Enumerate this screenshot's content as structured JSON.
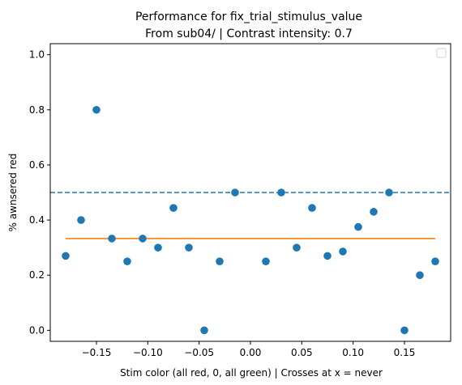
{
  "chart_data": {
    "type": "scatter",
    "title": "Performance for fix_trial_stimulus_value",
    "subtitle": "From sub04/ | Contrast intensity: 0.7",
    "xlabel": "Stim color (all red, 0, all green) | Crosses at x = never",
    "ylabel": "% awnsered red",
    "xlim": [
      -0.195,
      0.195
    ],
    "ylim": [
      -0.04,
      1.04
    ],
    "xticks": [
      -0.15,
      -0.1,
      -0.05,
      0.0,
      0.05,
      0.1,
      0.15
    ],
    "xtick_labels": [
      "−0.15",
      "−0.10",
      "−0.05",
      "0.00",
      "0.05",
      "0.10",
      "0.15"
    ],
    "yticks": [
      0.0,
      0.2,
      0.4,
      0.6,
      0.8,
      1.0
    ],
    "ytick_labels": [
      "0.0",
      "0.2",
      "0.4",
      "0.6",
      "0.8",
      "1.0"
    ],
    "points": [
      {
        "x": -0.18,
        "y": 0.27
      },
      {
        "x": -0.165,
        "y": 0.4
      },
      {
        "x": -0.15,
        "y": 0.8
      },
      {
        "x": -0.135,
        "y": 0.333
      },
      {
        "x": -0.12,
        "y": 0.25
      },
      {
        "x": -0.105,
        "y": 0.333
      },
      {
        "x": -0.09,
        "y": 0.3
      },
      {
        "x": -0.075,
        "y": 0.444
      },
      {
        "x": -0.06,
        "y": 0.3
      },
      {
        "x": -0.045,
        "y": 0.0
      },
      {
        "x": -0.03,
        "y": 0.25
      },
      {
        "x": -0.015,
        "y": 0.5
      },
      {
        "x": 0.015,
        "y": 0.25
      },
      {
        "x": 0.03,
        "y": 0.5
      },
      {
        "x": 0.045,
        "y": 0.3
      },
      {
        "x": 0.06,
        "y": 0.444
      },
      {
        "x": 0.075,
        "y": 0.27
      },
      {
        "x": 0.09,
        "y": 0.286
      },
      {
        "x": 0.105,
        "y": 0.375
      },
      {
        "x": 0.12,
        "y": 0.43
      },
      {
        "x": 0.135,
        "y": 0.5
      },
      {
        "x": 0.15,
        "y": 0.0
      },
      {
        "x": 0.165,
        "y": 0.2
      },
      {
        "x": 0.18,
        "y": 0.25
      }
    ],
    "reference_line": {
      "y": 0.5,
      "style": "dashed",
      "color": "#1f77b4"
    },
    "fit_line": {
      "x": [
        -0.18,
        0.18
      ],
      "y": [
        0.333,
        0.333
      ],
      "color": "#ff7f0e"
    },
    "point_color": "#1f77b4",
    "legend": {
      "position": "top-right",
      "entries": []
    },
    "grid": false
  }
}
